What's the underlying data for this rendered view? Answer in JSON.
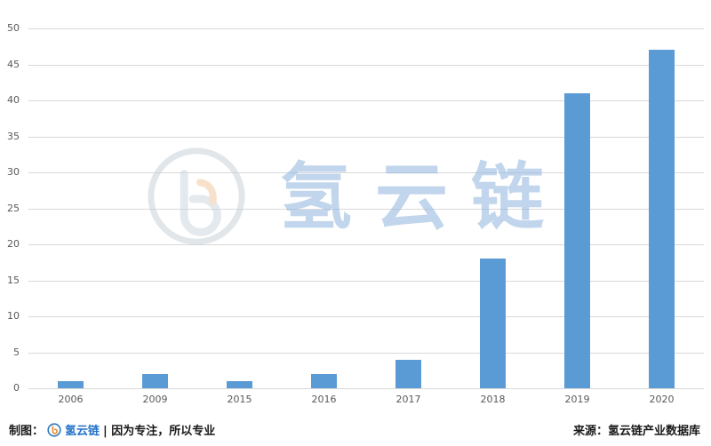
{
  "chart_data": {
    "type": "bar",
    "categories": [
      "2006",
      "2009",
      "2015",
      "2016",
      "2017",
      "2018",
      "2019",
      "2020"
    ],
    "values": [
      1,
      2,
      1,
      2,
      4,
      18,
      41,
      47
    ],
    "title": "",
    "xlabel": "",
    "ylabel": "",
    "ylim": [
      0,
      50
    ],
    "ytick_interval": 5,
    "bar_color": "#5b9bd5",
    "grid": true,
    "gridline_color": "#d9d9d9",
    "legend": "none"
  },
  "watermark": {
    "text": "氢云链",
    "color": "#8fb4dd"
  },
  "footer": {
    "left_prefix": "制图：",
    "left_brand": "氢云链",
    "left_suffix": "| 因为专注，所以专业",
    "right_text": "来源：氢云链产业数据库"
  }
}
